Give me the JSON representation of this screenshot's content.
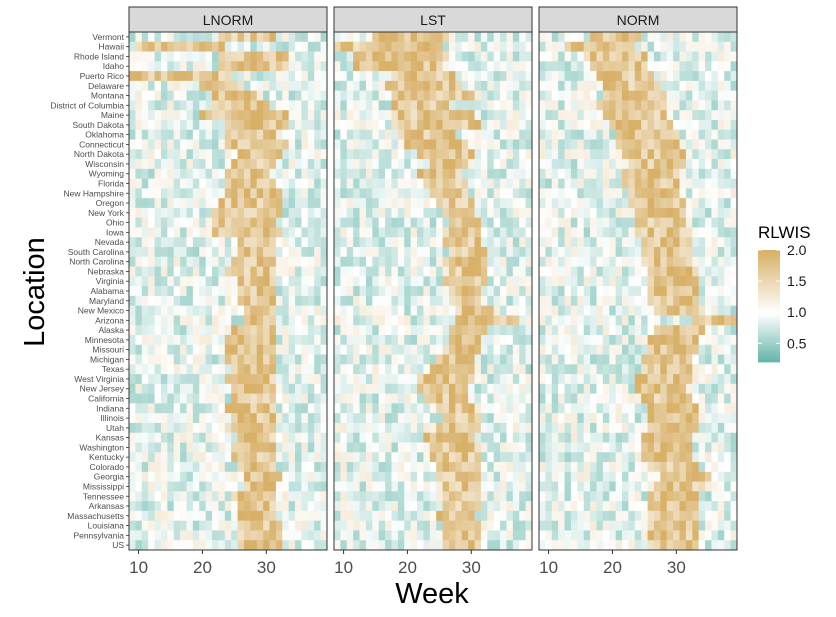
{
  "chart_data": {
    "type": "heatmap",
    "xlabel": "Week",
    "ylabel": "Location",
    "x_ticks": [
      10,
      20,
      30
    ],
    "x_range": [
      9,
      39
    ],
    "weeks": [
      9,
      10,
      11,
      12,
      13,
      14,
      15,
      16,
      17,
      18,
      19,
      20,
      21,
      22,
      23,
      24,
      25,
      26,
      27,
      28,
      29,
      30,
      31,
      32,
      33,
      34,
      35,
      36,
      37,
      38,
      39
    ],
    "locations": [
      "Vermont",
      "Hawaii",
      "Rhode Island",
      "Idaho",
      "Puerto Rico",
      "Delaware",
      "Montana",
      "District of Columbia",
      "Maine",
      "South Dakota",
      "Oklahoma",
      "Connecticut",
      "North Dakota",
      "Wisconsin",
      "Wyoming",
      "Florida",
      "New Hampshire",
      "Oregon",
      "New York",
      "Ohio",
      "Iowa",
      "Nevada",
      "South Carolina",
      "North Carolina",
      "Nebraska",
      "Virginia",
      "Alabama",
      "Maryland",
      "New Mexico",
      "Arizona",
      "Alaska",
      "Minnesota",
      "Missouri",
      "Michigan",
      "Texas",
      "West Virginia",
      "New Jersey",
      "California",
      "Indiana",
      "Illinois",
      "Utah",
      "Kansas",
      "Washington",
      "Kentucky",
      "Colorado",
      "Georgia",
      "Mississippi",
      "Tennessee",
      "Arkansas",
      "Massachusetts",
      "Louisiana",
      "Pennsylvania",
      "US"
    ],
    "facets": [
      "LNORM",
      "LST",
      "NORM"
    ],
    "legend": {
      "title": "RLWIS",
      "ticks": [
        "2.0",
        "1.5",
        "1.0",
        "0.5"
      ],
      "range": [
        0.2,
        2.0
      ],
      "colors": {
        "low": "#5fb3a8",
        "mid": "#ffffff",
        "high": "#d8b068"
      }
    },
    "grid": false,
    "legend_position": "right",
    "series": [
      {
        "name": "LNORM",
        "hot_rows": {
          "Vermont": [
            23,
            31
          ],
          "Hawaii": [
            10,
            23
          ],
          "Rhode Island": [
            23,
            33
          ],
          "Idaho": [
            23,
            33
          ],
          "Puerto Rico": [
            9,
            24
          ],
          "Delaware": [
            20,
            26
          ],
          "Montana": [
            22,
            28
          ],
          "District of Columbia": [
            22,
            30
          ],
          "Maine": [
            20,
            33
          ],
          "South Dakota": [
            24,
            33
          ],
          "Oklahoma": [
            24,
            31
          ],
          "Connecticut": [
            24,
            33
          ],
          "North Dakota": [
            26,
            32
          ],
          "Wisconsin": [
            25,
            31
          ],
          "Wyoming": [
            24,
            30
          ],
          "Florida": [
            24,
            31
          ],
          "New Hampshire": [
            24,
            32
          ],
          "Oregon": [
            23,
            32
          ],
          "New York": [
            22,
            32
          ],
          "Ohio": [
            22,
            31
          ],
          "Iowa": [
            22,
            32
          ],
          "Nevada": [
            26,
            31
          ],
          "South Carolina": [
            26,
            31
          ],
          "North Carolina": [
            25,
            31
          ],
          "Nebraska": [
            24,
            31
          ],
          "Virginia": [
            26,
            31
          ],
          "Alabama": [
            26,
            31
          ],
          "Maryland": [
            26,
            31
          ],
          "New Mexico": [
            27,
            31
          ],
          "Arizona": [
            27,
            31
          ],
          "Alaska": [
            25,
            31
          ],
          "Minnesota": [
            24,
            31
          ],
          "Missouri": [
            24,
            31
          ],
          "Michigan": [
            24,
            31
          ],
          "Texas": [
            25,
            31
          ],
          "West Virginia": [
            24,
            31
          ],
          "New Jersey": [
            25,
            31
          ],
          "California": [
            25,
            31
          ],
          "Indiana": [
            24,
            31
          ],
          "Illinois": [
            25,
            31
          ],
          "Utah": [
            24,
            31
          ],
          "Kansas": [
            26,
            31
          ],
          "Washington": [
            25,
            31
          ],
          "Kentucky": [
            25,
            31
          ],
          "Colorado": [
            26,
            31
          ],
          "Georgia": [
            27,
            32
          ],
          "Mississippi": [
            27,
            31
          ],
          "Tennessee": [
            25,
            31
          ],
          "Arkansas": [
            26,
            31
          ],
          "Massachusetts": [
            26,
            31
          ],
          "Louisiana": [
            26,
            32
          ],
          "Pennsylvania": [
            26,
            32
          ],
          "US": [
            26,
            32
          ]
        }
      },
      {
        "name": "LST",
        "hot_rows": {
          "Vermont": [
            15,
            26
          ],
          "Hawaii": [
            9,
            25
          ],
          "Rhode Island": [
            12,
            26
          ],
          "Idaho": [
            12,
            25
          ],
          "Puerto Rico": [
            18,
            27
          ],
          "Delaware": [
            17,
            28
          ],
          "Montana": [
            18,
            30
          ],
          "District of Columbia": [
            18,
            26
          ],
          "Maine": [
            18,
            30
          ],
          "South Dakota": [
            18,
            31
          ],
          "Oklahoma": [
            19,
            27
          ],
          "Connecticut": [
            20,
            29
          ],
          "North Dakota": [
            22,
            30
          ],
          "Wisconsin": [
            24,
            29
          ],
          "Wyoming": [
            22,
            28
          ],
          "Florida": [
            23,
            29
          ],
          "New Hampshire": [
            24,
            29
          ],
          "Oregon": [
            25,
            30
          ],
          "New York": [
            26,
            30
          ],
          "Ohio": [
            27,
            31
          ],
          "Iowa": [
            26,
            31
          ],
          "Nevada": [
            26,
            31
          ],
          "South Carolina": [
            27,
            32
          ],
          "North Carolina": [
            26,
            32
          ],
          "Nebraska": [
            27,
            32
          ],
          "Virginia": [
            26,
            32
          ],
          "Alabama": [
            27,
            31
          ],
          "Maryland": [
            27,
            31
          ],
          "New Mexico": [
            28,
            33
          ],
          "Arizona": [
            28,
            37
          ],
          "Alaska": [
            27,
            32
          ],
          "Minnesota": [
            27,
            31
          ],
          "Missouri": [
            26,
            31
          ],
          "Michigan": [
            25,
            30
          ],
          "Texas": [
            24,
            30
          ],
          "West Virginia": [
            22,
            30
          ],
          "New Jersey": [
            22,
            29
          ],
          "California": [
            23,
            29
          ],
          "Indiana": [
            25,
            30
          ],
          "Illinois": [
            26,
            31
          ],
          "Utah": [
            25,
            31
          ],
          "Kansas": [
            23,
            30
          ],
          "Washington": [
            24,
            31
          ],
          "Kentucky": [
            24,
            31
          ],
          "Colorado": [
            25,
            31
          ],
          "Georgia": [
            25,
            31
          ],
          "Mississippi": [
            26,
            31
          ],
          "Tennessee": [
            26,
            31
          ],
          "Arkansas": [
            26,
            31
          ],
          "Massachusetts": [
            25,
            30
          ],
          "Louisiana": [
            26,
            31
          ],
          "Pennsylvania": [
            26,
            31
          ],
          "US": [
            26,
            31
          ]
        }
      },
      {
        "name": "NORM",
        "hot_rows": {
          "Vermont": [
            17,
            24
          ],
          "Hawaii": [
            13,
            23
          ],
          "Rhode Island": [
            16,
            25
          ],
          "Idaho": [
            17,
            25
          ],
          "Puerto Rico": [
            18,
            26
          ],
          "Delaware": [
            19,
            27
          ],
          "Montana": [
            19,
            28
          ],
          "District of Columbia": [
            18,
            28
          ],
          "Maine": [
            19,
            28
          ],
          "South Dakota": [
            20,
            29
          ],
          "Oklahoma": [
            21,
            30
          ],
          "Connecticut": [
            21,
            30
          ],
          "North Dakota": [
            22,
            31
          ],
          "Wisconsin": [
            23,
            31
          ],
          "Wyoming": [
            22,
            30
          ],
          "Florida": [
            22,
            30
          ],
          "New Hampshire": [
            23,
            30
          ],
          "Oregon": [
            23,
            31
          ],
          "New York": [
            24,
            31
          ],
          "Ohio": [
            24,
            31
          ],
          "Iowa": [
            24,
            32
          ],
          "Nevada": [
            25,
            32
          ],
          "South Carolina": [
            25,
            32
          ],
          "North Carolina": [
            25,
            32
          ],
          "Nebraska": [
            26,
            33
          ],
          "Virginia": [
            26,
            33
          ],
          "Alabama": [
            26,
            33
          ],
          "Maryland": [
            26,
            33
          ],
          "New Mexico": [
            27,
            34
          ],
          "Arizona": [
            33,
            39
          ],
          "Alaska": [
            27,
            34
          ],
          "Minnesota": [
            26,
            33
          ],
          "Missouri": [
            26,
            33
          ],
          "Michigan": [
            25,
            32
          ],
          "Texas": [
            25,
            32
          ],
          "West Virginia": [
            24,
            32
          ],
          "New Jersey": [
            24,
            31
          ],
          "California": [
            25,
            32
          ],
          "Indiana": [
            26,
            33
          ],
          "Illinois": [
            26,
            33
          ],
          "Utah": [
            26,
            33
          ],
          "Kansas": [
            25,
            32
          ],
          "Washington": [
            25,
            32
          ],
          "Kentucky": [
            25,
            32
          ],
          "Colorado": [
            26,
            33
          ],
          "Georgia": [
            28,
            35
          ],
          "Mississippi": [
            27,
            34
          ],
          "Tennessee": [
            26,
            33
          ],
          "Arkansas": [
            26,
            33
          ],
          "Massachusetts": [
            26,
            33
          ],
          "Louisiana": [
            26,
            33
          ],
          "Pennsylvania": [
            26,
            33
          ],
          "US": [
            26,
            33
          ]
        }
      }
    ]
  }
}
